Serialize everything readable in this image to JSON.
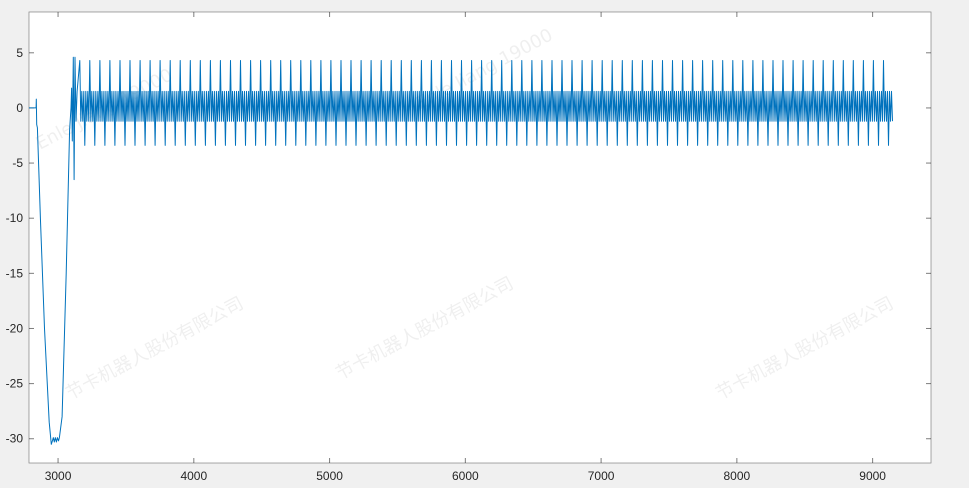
{
  "chart_data": {
    "type": "line",
    "title": "",
    "xlabel": "",
    "ylabel": "",
    "xlim": [
      2786,
      9430
    ],
    "ylim": [
      -32.2,
      8.7
    ],
    "xticks": [
      3000,
      4000,
      5000,
      6000,
      7000,
      8000,
      9000
    ],
    "yticks": [
      5,
      0,
      -5,
      -10,
      -15,
      -20,
      -25,
      -30
    ],
    "grid": false,
    "line_color": "#0072bd",
    "series": [
      {
        "transient": {
          "x": [
            2786,
            2838,
            2840,
            2843,
            2848,
            2870,
            2900,
            2935,
            2950,
            2958,
            2965,
            2972,
            2980,
            2988,
            2995,
            3003,
            3010,
            3030,
            3060,
            3085,
            3095,
            3100,
            3105,
            3112,
            3118,
            3125,
            3132,
            3140
          ],
          "y": [
            0,
            0,
            0.8,
            -1.5,
            -1.8,
            -10,
            -20,
            -28.5,
            -30.5,
            -30.2,
            -29.9,
            -30.3,
            -29.9,
            -30.3,
            -29.9,
            -30.2,
            -29.9,
            -28,
            -15,
            -2,
            0,
            1.8,
            -3,
            4.6,
            -6.5,
            4.6,
            -1.2,
            1.5
          ]
        },
        "periodic": {
          "x_start": 3160,
          "x_end": 9130,
          "period": 74,
          "peak_high": 4.3,
          "peak_low": -3.4,
          "band_high": 1.5,
          "band_low": -1.2
        }
      }
    ]
  },
  "watermark": {
    "company": "节卡机器人股份有限公司",
    "name": "Enle Jiang 19000"
  }
}
